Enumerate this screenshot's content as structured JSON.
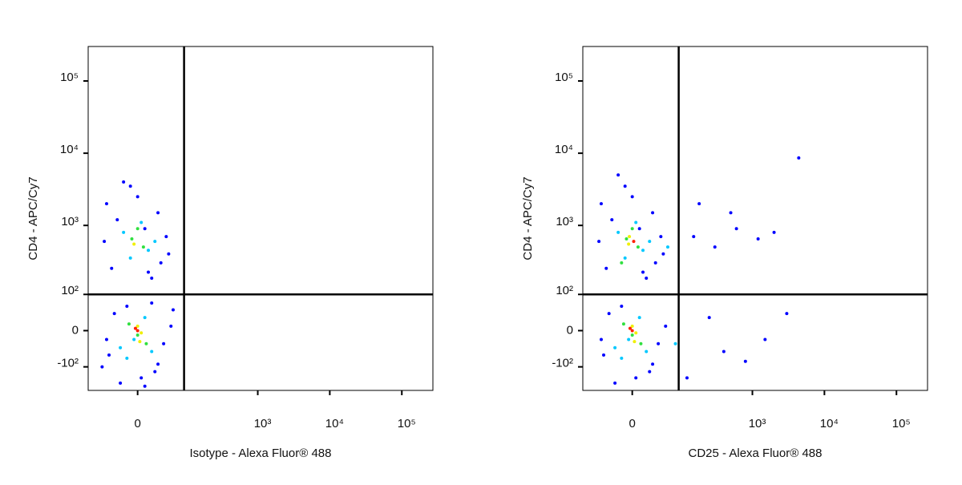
{
  "chart_data": [
    {
      "type": "scatter",
      "scale": "biexponential",
      "xlabel": "Isotype - Alexa Fluor® 488",
      "ylabel": "CD4 - APC/Cy7",
      "xlim": [
        -100,
        270000
      ],
      "ylim": [
        -230,
        300000
      ],
      "xticks": [
        0,
        {
          "value": 1000,
          "label": "10³"
        },
        {
          "value": 10000,
          "label": "10⁴"
        },
        {
          "value": 100000,
          "label": "10⁵"
        }
      ],
      "yticks": [
        {
          "value": -100,
          "label": "-10²"
        },
        0,
        {
          "value": 100,
          "label": "10²"
        },
        {
          "value": 1000,
          "label": "10³"
        },
        {
          "value": 10000,
          "label": "10⁴"
        },
        {
          "value": 100000,
          "label": "10⁵"
        }
      ],
      "gates": {
        "x": 90,
        "y": 100
      },
      "series": [
        {
          "color": "#0000ff",
          "x": [
            -50,
            -30,
            -10,
            10,
            30,
            50,
            -40,
            20,
            45,
            -20,
            0,
            35,
            -55,
            15,
            -45,
            25,
            -35,
            40,
            -25,
            5,
            55,
            -15,
            30,
            -50,
            10,
            60,
            -60,
            20
          ],
          "values": [
            2000,
            1200,
            3500,
            900,
            1500,
            400,
            250,
            180,
            700,
            4000,
            2500,
            300,
            600,
            220,
            -60,
            -120,
            40,
            -30,
            -180,
            -150,
            10,
            60,
            -90,
            -20,
            -200,
            50,
            -100,
            70
          ]
        },
        {
          "color": "#00c8ff",
          "x": [
            -20,
            15,
            -10,
            25,
            -25,
            10,
            -15,
            20,
            5,
            -5
          ],
          "values": [
            800,
            450,
            350,
            600,
            -40,
            30,
            -70,
            -50,
            1100,
            -20
          ]
        },
        {
          "color": "#30e040",
          "x": [
            -8,
            8,
            0,
            -12,
            12,
            0
          ],
          "values": [
            650,
            500,
            -10,
            15,
            -30,
            900
          ]
        },
        {
          "color": "#f0f000",
          "x": [
            -5,
            5,
            0,
            3
          ],
          "values": [
            550,
            -5,
            10,
            -25
          ]
        },
        {
          "color": "#ff2000",
          "x": [
            0,
            -3
          ],
          "values": [
            0,
            5
          ]
        }
      ]
    },
    {
      "type": "scatter",
      "scale": "biexponential",
      "xlabel": "CD25 - Alexa Fluor® 488",
      "ylabel": "CD4 - APC/Cy7",
      "xlim": [
        -100,
        270000
      ],
      "ylim": [
        -230,
        300000
      ],
      "xticks": [
        0,
        {
          "value": 1000,
          "label": "10³"
        },
        {
          "value": 10000,
          "label": "10⁴"
        },
        {
          "value": 100000,
          "label": "10⁵"
        }
      ],
      "yticks": [
        {
          "value": -100,
          "label": "-10²"
        },
        0,
        {
          "value": 100,
          "label": "10²"
        },
        {
          "value": 1000,
          "label": "10³"
        },
        {
          "value": 10000,
          "label": "10⁴"
        },
        {
          "value": 100000,
          "label": "10⁵"
        }
      ],
      "gates": {
        "x": 90,
        "y": 100
      },
      "series": [
        {
          "color": "#0000ff",
          "x": [
            -50,
            -30,
            -10,
            10,
            30,
            50,
            -40,
            20,
            45,
            -20,
            0,
            35,
            -55,
            15,
            -45,
            25,
            -35,
            40,
            -25,
            5,
            55,
            -15,
            30,
            -50,
            150,
            300,
            600,
            1200,
            2000,
            400,
            800,
            250,
            1500,
            4400,
            3000,
            180,
            120,
            500
          ],
          "values": [
            2000,
            1200,
            3500,
            900,
            1500,
            400,
            250,
            180,
            700,
            5000,
            2500,
            300,
            600,
            220,
            -60,
            -120,
            40,
            -30,
            -180,
            -150,
            10,
            60,
            -90,
            -20,
            700,
            500,
            900,
            650,
            800,
            -50,
            -80,
            30,
            -20,
            8600,
            40,
            2000,
            -150,
            1500
          ]
        },
        {
          "color": "#00c8ff",
          "x": [
            -20,
            15,
            -10,
            25,
            -25,
            10,
            -15,
            20,
            5,
            -5,
            60,
            80
          ],
          "values": [
            800,
            450,
            350,
            600,
            -40,
            30,
            -70,
            -50,
            1100,
            -20,
            500,
            -30
          ]
        },
        {
          "color": "#30e040",
          "x": [
            -8,
            8,
            0,
            -12,
            12,
            0,
            -15
          ],
          "values": [
            650,
            500,
            -10,
            15,
            -30,
            900,
            300
          ]
        },
        {
          "color": "#f0f000",
          "x": [
            -5,
            5,
            0,
            3,
            -4
          ],
          "values": [
            550,
            -5,
            10,
            -25,
            700
          ]
        },
        {
          "color": "#ff2000",
          "x": [
            0,
            -3,
            2
          ],
          "values": [
            0,
            5,
            600
          ]
        }
      ]
    }
  ]
}
